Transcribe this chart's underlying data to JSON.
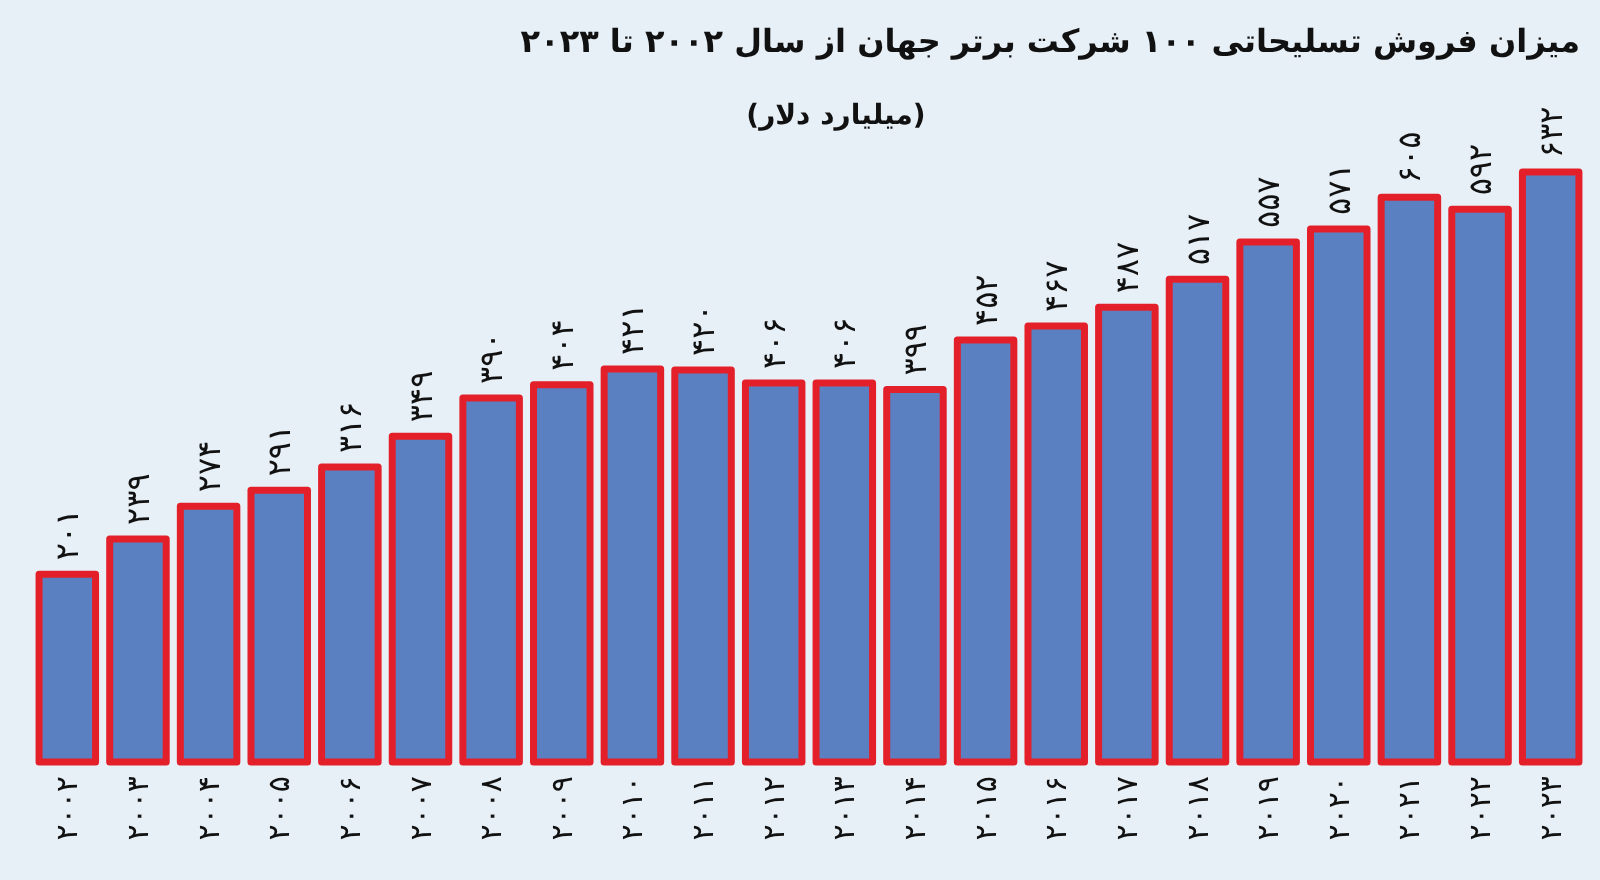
{
  "chart_data": {
    "type": "bar",
    "title": "میزان فروش تسلیحاتی ۱۰۰ شرکت برتر جهان از سال ۲۰۰۲ تا ۲۰۲۳",
    "subtitle": "(میلیارد دلار)",
    "categories": [
      "۲۰۰۲",
      "۲۰۰۳",
      "۲۰۰۴",
      "۲۰۰۵",
      "۲۰۰۶",
      "۲۰۰۷",
      "۲۰۰۸",
      "۲۰۰۹",
      "۲۰۱۰",
      "۲۰۱۱",
      "۲۰۱۲",
      "۲۰۱۳",
      "۲۰۱۴",
      "۲۰۱۵",
      "۲۰۱۶",
      "۲۰۱۷",
      "۲۰۱۸",
      "۲۰۱۹",
      "۲۰۲۰",
      "۲۰۲۱",
      "۲۰۲۲",
      "۲۰۲۳"
    ],
    "values": [
      201,
      239,
      274,
      291,
      316,
      349,
      390,
      404,
      421,
      420,
      406,
      406,
      399,
      452,
      467,
      487,
      517,
      557,
      571,
      605,
      592,
      632
    ],
    "value_labels": [
      "۲۰۱",
      "۲۳۹",
      "۲۷۴",
      "۲۹۱",
      "۳۱۶",
      "۳۴۹",
      "۳۹۰",
      "۴۰۴",
      "۴۲۱",
      "۴۲۰",
      "۴۰۶",
      "۴۰۶",
      "۳۹۹",
      "۴۵۲",
      "۴۶۷",
      "۴۸۷",
      "۵۱۷",
      "۵۵۷",
      "۵۷۱",
      "۶۰۵",
      "۵۹۲",
      "۶۳۲"
    ],
    "color": "#5b80c2"
  }
}
